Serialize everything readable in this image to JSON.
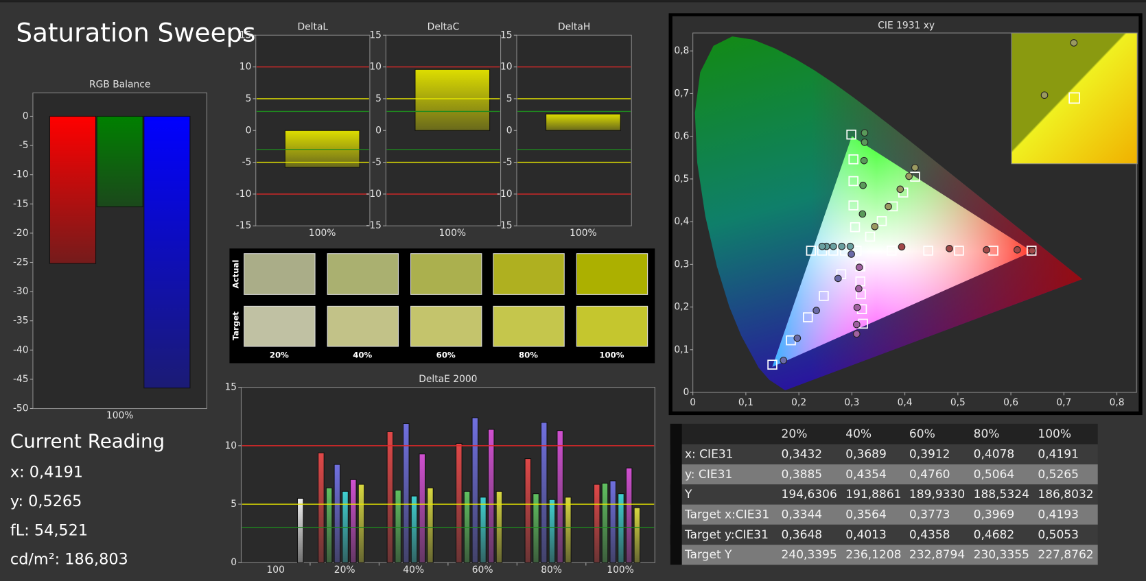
{
  "title": "Saturation Sweeps",
  "current_reading": {
    "heading": "Current Reading",
    "lines": [
      "x: 0,4191",
      "y: 0,5265",
      "fL: 54,521",
      "cd/m²: 186,803"
    ]
  },
  "swatches": {
    "row_labels": [
      "Actual",
      "Target"
    ],
    "columns": [
      "20%",
      "40%",
      "60%",
      "80%",
      "100%"
    ],
    "actual": [
      "#aaad88",
      "#aab070",
      "#abb04e",
      "#afb020",
      "#acb000"
    ],
    "target": [
      "#c0c1a3",
      "#c2c288",
      "#c4c46c",
      "#c5c64c",
      "#c5c62e"
    ]
  },
  "table": {
    "columns": [
      "20%",
      "40%",
      "60%",
      "80%",
      "100%"
    ],
    "rows": [
      {
        "label": "x: CIE31",
        "cells": [
          "0,3432",
          "0,3689",
          "0,3912",
          "0,4078",
          "0,4191"
        ]
      },
      {
        "label": "y: CIE31",
        "cells": [
          "0,3885",
          "0,4354",
          "0,4760",
          "0,5064",
          "0,5265"
        ]
      },
      {
        "label": "Y",
        "cells": [
          "194,6306",
          "191,8861",
          "189,9330",
          "188,5324",
          "186,8032"
        ]
      },
      {
        "label": "Target x:CIE31",
        "cells": [
          "0,3344",
          "0,3564",
          "0,3773",
          "0,3969",
          "0,4193"
        ]
      },
      {
        "label": "Target y:CIE31",
        "cells": [
          "0,3648",
          "0,4013",
          "0,4358",
          "0,4682",
          "0,5053"
        ]
      },
      {
        "label": "Target Y",
        "cells": [
          "240,3395",
          "236,1208",
          "232,8794",
          "230,3355",
          "227,8762"
        ]
      }
    ]
  },
  "chart_data": [
    {
      "type": "bar",
      "title": "RGB Balance",
      "categories": [
        "100%"
      ],
      "series": [
        {
          "color": "#ff0000",
          "values": [
            -25.2
          ]
        },
        {
          "color": "#008000",
          "values": [
            -15.5
          ]
        },
        {
          "color": "#0000ff",
          "values": [
            -46.5
          ]
        }
      ],
      "ylim": [
        -50,
        4
      ],
      "yticks": [
        0,
        -5,
        -10,
        -15,
        -20,
        -25,
        -30,
        -35,
        -40,
        -45,
        -50
      ]
    },
    {
      "type": "bar",
      "title": "DeltaL",
      "categories": [
        "100%"
      ],
      "series": [
        {
          "color": "#dede00",
          "values": [
            -5.8
          ]
        }
      ],
      "ylim": [
        -15,
        15
      ],
      "yticks": [
        15,
        10,
        5,
        0,
        -5,
        -10,
        -15
      ],
      "reference_lines": [
        {
          "value": 10,
          "color": "#e02828"
        },
        {
          "value": -10,
          "color": "#e02828"
        },
        {
          "value": 5,
          "color": "#e6e600"
        },
        {
          "value": -5,
          "color": "#e6e600"
        },
        {
          "value": 3,
          "color": "#1f8a1f"
        },
        {
          "value": -3,
          "color": "#1f8a1f"
        }
      ]
    },
    {
      "type": "bar",
      "title": "DeltaC",
      "categories": [
        "100%"
      ],
      "series": [
        {
          "color": "#dede00",
          "values": [
            9.6
          ]
        }
      ],
      "ylim": [
        -15,
        15
      ],
      "yticks": [
        15,
        10,
        5,
        0,
        -5,
        -10,
        -15
      ],
      "reference_lines": [
        {
          "value": 10,
          "color": "#e02828"
        },
        {
          "value": -10,
          "color": "#e02828"
        },
        {
          "value": 5,
          "color": "#e6e600"
        },
        {
          "value": -5,
          "color": "#e6e600"
        },
        {
          "value": 3,
          "color": "#1f8a1f"
        },
        {
          "value": -3,
          "color": "#1f8a1f"
        }
      ]
    },
    {
      "type": "bar",
      "title": "DeltaH",
      "categories": [
        "100%"
      ],
      "series": [
        {
          "color": "#dede00",
          "values": [
            2.6
          ]
        }
      ],
      "ylim": [
        -15,
        15
      ],
      "yticks": [
        15,
        10,
        5,
        0,
        -5,
        -10,
        -15
      ],
      "reference_lines": [
        {
          "value": 10,
          "color": "#e02828"
        },
        {
          "value": -10,
          "color": "#e02828"
        },
        {
          "value": 5,
          "color": "#e6e600"
        },
        {
          "value": -5,
          "color": "#e6e600"
        },
        {
          "value": 3,
          "color": "#1f8a1f"
        },
        {
          "value": -3,
          "color": "#1f8a1f"
        }
      ]
    },
    {
      "type": "bar",
      "title": "DeltaE 2000",
      "categories": [
        "100",
        "20%",
        "40%",
        "60%",
        "80%",
        "100%"
      ],
      "series": [
        {
          "color": "#e04848",
          "values": [
            null,
            9.4,
            11.2,
            10.2,
            8.9,
            6.7
          ]
        },
        {
          "color": "#60c060",
          "values": [
            null,
            6.4,
            6.2,
            6.1,
            5.9,
            6.8
          ]
        },
        {
          "color": "#7070e0",
          "values": [
            null,
            8.4,
            11.9,
            12.4,
            12.0,
            7.0
          ]
        },
        {
          "color": "#40d0d0",
          "values": [
            null,
            6.1,
            5.7,
            5.6,
            5.4,
            5.9
          ]
        },
        {
          "color": "#d050d0",
          "values": [
            null,
            7.1,
            9.3,
            11.4,
            11.3,
            8.1
          ]
        },
        {
          "color": "#d8d840",
          "values": [
            null,
            6.7,
            6.4,
            6.1,
            5.6,
            4.7
          ]
        },
        {
          "color": "#f0f0f0",
          "values": [
            5.5,
            null,
            null,
            null,
            null,
            null
          ]
        }
      ],
      "ylim": [
        0,
        15
      ],
      "yticks": [
        0,
        5,
        10,
        15
      ],
      "reference_lines": [
        {
          "value": 10,
          "color": "#e02828"
        },
        {
          "value": 5,
          "color": "#e6e600"
        },
        {
          "value": 3,
          "color": "#1f8a1f"
        }
      ]
    },
    {
      "type": "scatter",
      "title": "CIE 1931 xy",
      "xlim": [
        0,
        0.837
      ],
      "ylim": [
        0,
        0.842
      ],
      "xticks": [
        0,
        {
          "value": 0.1,
          "label": "0,1"
        },
        {
          "value": 0.2,
          "label": "0,2"
        },
        {
          "value": 0.3,
          "label": "0,3"
        },
        {
          "value": 0.4,
          "label": "0,4"
        },
        {
          "value": 0.5,
          "label": "0,5"
        },
        {
          "value": 0.6,
          "label": "0,6"
        },
        {
          "value": 0.7,
          "label": "0,7"
        },
        {
          "value": 0.8,
          "label": "0,8"
        }
      ],
      "yticks": [
        0,
        {
          "value": 0.1,
          "label": "0,1"
        },
        {
          "value": 0.2,
          "label": "0,2"
        },
        {
          "value": 0.3,
          "label": "0,3"
        },
        {
          "value": 0.4,
          "label": "0,4"
        },
        {
          "value": 0.5,
          "label": "0,5"
        },
        {
          "value": 0.6,
          "label": "0,6"
        },
        {
          "value": 0.7,
          "label": "0,7"
        },
        {
          "value": 0.8,
          "label": "0,8"
        }
      ],
      "series": [
        {
          "marker": "square",
          "color": "#ffffff",
          "x": [
            0.375,
            0.444,
            0.502,
            0.567,
            0.639
          ],
          "y": [
            0.332,
            0.332,
            0.332,
            0.332,
            0.332
          ]
        },
        {
          "marker": "square",
          "color": "#ffffff",
          "x": [
            0.306,
            0.303,
            0.303,
            0.303,
            0.299
          ],
          "y": [
            0.387,
            0.438,
            0.495,
            0.546,
            0.604
          ]
        },
        {
          "marker": "square",
          "color": "#ffffff",
          "x": [
            0.28,
            0.247,
            0.217,
            0.185,
            0.15
          ],
          "y": [
            0.277,
            0.226,
            0.176,
            0.122,
            0.065
          ]
        },
        {
          "marker": "square",
          "color": "#ffffff",
          "x": [
            0.309,
            0.287,
            0.265,
            0.244,
            0.223
          ],
          "y": [
            0.332,
            0.332,
            0.332,
            0.332,
            0.332
          ]
        },
        {
          "marker": "square",
          "color": "#ffffff",
          "x": [
            0.316,
            0.316,
            0.317,
            0.319,
            0.321
          ],
          "y": [
            0.295,
            0.26,
            0.23,
            0.195,
            0.161
          ]
        },
        {
          "marker": "square",
          "color": "#ffffff",
          "x": [
            0.3344,
            0.3564,
            0.3773,
            0.3969,
            0.4193
          ],
          "y": [
            0.3648,
            0.4013,
            0.4358,
            0.4682,
            0.5053
          ]
        },
        {
          "marker": "circle",
          "color": "#a04848",
          "x": [
            0.394,
            0.484,
            0.554,
            0.612,
            0.64
          ],
          "y": [
            0.341,
            0.337,
            0.334,
            0.334,
            0.332
          ]
        },
        {
          "marker": "circle",
          "color": "#5a9a5a",
          "x": [
            0.32,
            0.321,
            0.323,
            0.324,
            0.324
          ],
          "y": [
            0.418,
            0.485,
            0.543,
            0.586,
            0.608
          ]
        },
        {
          "marker": "circle",
          "color": "#6a6aa8",
          "x": [
            0.299,
            0.274,
            0.233,
            0.197,
            0.171
          ],
          "y": [
            0.324,
            0.267,
            0.192,
            0.127,
            0.075
          ]
        },
        {
          "marker": "circle",
          "color": "#6aa0a0",
          "x": [
            0.297,
            0.281,
            0.265,
            0.252,
            0.244
          ],
          "y": [
            0.342,
            0.342,
            0.342,
            0.342,
            0.342
          ]
        },
        {
          "marker": "circle",
          "color": "#a060a0",
          "x": [
            0.314,
            0.313,
            0.31,
            0.309,
            0.309
          ],
          "y": [
            0.293,
            0.243,
            0.199,
            0.159,
            0.137
          ]
        },
        {
          "marker": "circle",
          "color": "#9a9a60",
          "x": [
            0.3432,
            0.3689,
            0.3912,
            0.4078,
            0.4191
          ],
          "y": [
            0.3885,
            0.4354,
            0.476,
            0.5064,
            0.5265
          ]
        }
      ]
    }
  ]
}
